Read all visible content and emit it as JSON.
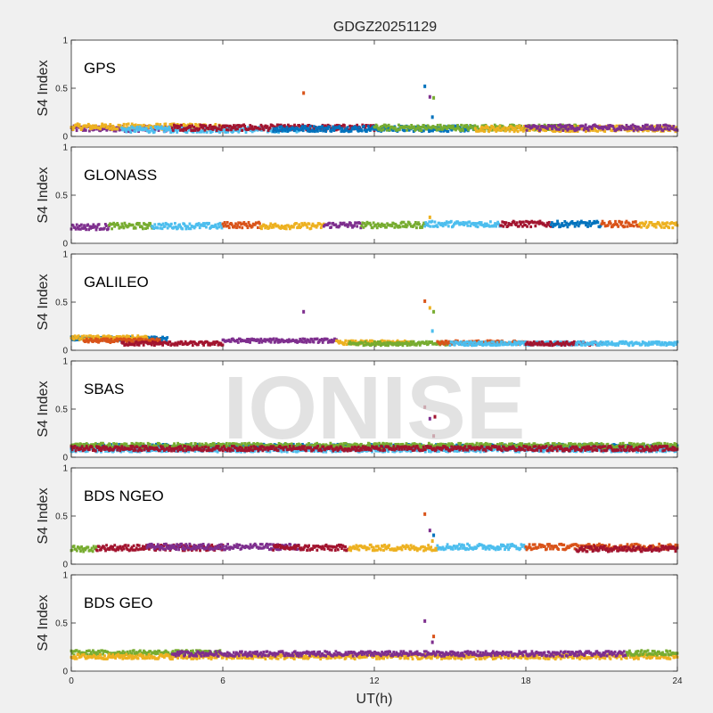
{
  "chart_data": {
    "type": "scatter",
    "title": "GDGZ20251129",
    "xlabel": "UT(h)",
    "ylabel": "S4 Index",
    "xlim": [
      0,
      24
    ],
    "ylim": [
      0,
      1
    ],
    "xticks": [
      0,
      6,
      12,
      18,
      24
    ],
    "yticks": [
      0,
      0.5,
      1
    ],
    "ytick_labels": [
      "0",
      "0.5",
      "1"
    ],
    "grid": false,
    "watermark": "IONISE",
    "colors": {
      "blue": "#0072BD",
      "orange": "#D95319",
      "yellow": "#EDB120",
      "purple": "#7E2F8E",
      "green": "#77AC30",
      "cyan": "#4DBEEE",
      "crimson": "#A2142F"
    },
    "panels": [
      {
        "label": "GPS",
        "baseline": 0.08,
        "noise": 0.03,
        "segments": [
          {
            "start": 0,
            "end": 4,
            "color": "#7E2F8E",
            "level": 0.08
          },
          {
            "start": 0,
            "end": 6,
            "color": "#EDB120",
            "level": 0.1
          },
          {
            "start": 2,
            "end": 9,
            "color": "#4DBEEE",
            "level": 0.07
          },
          {
            "start": 4,
            "end": 12,
            "color": "#A2142F",
            "level": 0.09
          },
          {
            "start": 8,
            "end": 16,
            "color": "#0072BD",
            "level": 0.08
          },
          {
            "start": 12,
            "end": 20,
            "color": "#77AC30",
            "level": 0.09
          },
          {
            "start": 16,
            "end": 24,
            "color": "#EDB120",
            "level": 0.08
          },
          {
            "start": 18,
            "end": 24,
            "color": "#7E2F8E",
            "level": 0.09
          }
        ],
        "outliers": [
          {
            "x": 9.2,
            "y": 0.45,
            "color": "#D95319"
          },
          {
            "x": 14.0,
            "y": 0.52,
            "color": "#0072BD"
          },
          {
            "x": 14.2,
            "y": 0.41,
            "color": "#7E2F8E"
          },
          {
            "x": 14.35,
            "y": 0.4,
            "color": "#77AC30"
          },
          {
            "x": 14.3,
            "y": 0.2,
            "color": "#0072BD"
          }
        ]
      },
      {
        "label": "GLONASS",
        "baseline": 0.18,
        "noise": 0.03,
        "segments": [
          {
            "start": 0,
            "end": 1.5,
            "color": "#7E2F8E",
            "level": 0.17
          },
          {
            "start": 1.5,
            "end": 3.2,
            "color": "#77AC30",
            "level": 0.18
          },
          {
            "start": 3.2,
            "end": 6,
            "color": "#4DBEEE",
            "level": 0.18
          },
          {
            "start": 6,
            "end": 7.5,
            "color": "#D95319",
            "level": 0.19
          },
          {
            "start": 7.5,
            "end": 10,
            "color": "#EDB120",
            "level": 0.18
          },
          {
            "start": 10,
            "end": 11.5,
            "color": "#7E2F8E",
            "level": 0.19
          },
          {
            "start": 11.5,
            "end": 14,
            "color": "#77AC30",
            "level": 0.19
          },
          {
            "start": 14,
            "end": 17,
            "color": "#4DBEEE",
            "level": 0.2
          },
          {
            "start": 17,
            "end": 19,
            "color": "#A2142F",
            "level": 0.2
          },
          {
            "start": 19,
            "end": 21,
            "color": "#0072BD",
            "level": 0.2
          },
          {
            "start": 21,
            "end": 22.5,
            "color": "#D95319",
            "level": 0.2
          },
          {
            "start": 22.5,
            "end": 24,
            "color": "#EDB120",
            "level": 0.19
          }
        ],
        "outliers": [
          {
            "x": 14.2,
            "y": 0.27,
            "color": "#EDB120"
          }
        ]
      },
      {
        "label": "GALILEO",
        "baseline": 0.08,
        "noise": 0.02,
        "segments": [
          {
            "start": 0,
            "end": 3.8,
            "color": "#0072BD",
            "level": 0.12
          },
          {
            "start": 0,
            "end": 3.0,
            "color": "#EDB120",
            "level": 0.13
          },
          {
            "start": 0.5,
            "end": 3.5,
            "color": "#D95319",
            "level": 0.1
          },
          {
            "start": 2,
            "end": 6,
            "color": "#A2142F",
            "level": 0.07
          },
          {
            "start": 6,
            "end": 10.5,
            "color": "#7E2F8E",
            "level": 0.1
          },
          {
            "start": 10.5,
            "end": 13.5,
            "color": "#EDB120",
            "level": 0.08
          },
          {
            "start": 11,
            "end": 15,
            "color": "#77AC30",
            "level": 0.07
          },
          {
            "start": 14.5,
            "end": 18,
            "color": "#D95319",
            "level": 0.08
          },
          {
            "start": 15,
            "end": 20,
            "color": "#4DBEEE",
            "level": 0.07
          },
          {
            "start": 18,
            "end": 21,
            "color": "#A2142F",
            "level": 0.07
          },
          {
            "start": 20,
            "end": 24,
            "color": "#4DBEEE",
            "level": 0.07
          }
        ],
        "outliers": [
          {
            "x": 9.2,
            "y": 0.4,
            "color": "#7E2F8E"
          },
          {
            "x": 14.0,
            "y": 0.51,
            "color": "#D95319"
          },
          {
            "x": 14.2,
            "y": 0.44,
            "color": "#EDB120"
          },
          {
            "x": 14.35,
            "y": 0.4,
            "color": "#77AC30"
          },
          {
            "x": 14.3,
            "y": 0.2,
            "color": "#4DBEEE"
          }
        ]
      },
      {
        "label": "SBAS",
        "baseline": 0.1,
        "noise": 0.025,
        "segments": [
          {
            "start": 0,
            "end": 24,
            "color": "#0072BD",
            "level": 0.11
          },
          {
            "start": 0,
            "end": 24,
            "color": "#4DBEEE",
            "level": 0.08
          },
          {
            "start": 0,
            "end": 24,
            "color": "#77AC30",
            "level": 0.12
          },
          {
            "start": 0,
            "end": 24,
            "color": "#A2142F",
            "level": 0.09
          }
        ],
        "outliers": [
          {
            "x": 14.0,
            "y": 0.52,
            "color": "#A2142F"
          },
          {
            "x": 14.2,
            "y": 0.4,
            "color": "#7E2F8E"
          },
          {
            "x": 14.4,
            "y": 0.42,
            "color": "#A2142F"
          },
          {
            "x": 14.35,
            "y": 0.22,
            "color": "#A2142F"
          }
        ]
      },
      {
        "label": "BDS NGEO",
        "baseline": 0.17,
        "noise": 0.03,
        "segments": [
          {
            "start": 0,
            "end": 1,
            "color": "#77AC30",
            "level": 0.16
          },
          {
            "start": 1,
            "end": 6,
            "color": "#A2142F",
            "level": 0.17
          },
          {
            "start": 3,
            "end": 9,
            "color": "#7E2F8E",
            "level": 0.18
          },
          {
            "start": 8,
            "end": 11,
            "color": "#A2142F",
            "level": 0.17
          },
          {
            "start": 11,
            "end": 14.5,
            "color": "#EDB120",
            "level": 0.17
          },
          {
            "start": 14.5,
            "end": 18,
            "color": "#4DBEEE",
            "level": 0.18
          },
          {
            "start": 18,
            "end": 24,
            "color": "#D95319",
            "level": 0.18
          },
          {
            "start": 20,
            "end": 24,
            "color": "#A2142F",
            "level": 0.16
          }
        ],
        "outliers": [
          {
            "x": 14.0,
            "y": 0.52,
            "color": "#D95319"
          },
          {
            "x": 14.2,
            "y": 0.35,
            "color": "#7E2F8E"
          },
          {
            "x": 14.35,
            "y": 0.3,
            "color": "#0072BD"
          },
          {
            "x": 14.3,
            "y": 0.24,
            "color": "#EDB120"
          }
        ]
      },
      {
        "label": "BDS GEO",
        "baseline": 0.17,
        "noise": 0.025,
        "segments": [
          {
            "start": 0,
            "end": 6,
            "color": "#77AC30",
            "level": 0.19
          },
          {
            "start": 0,
            "end": 24,
            "color": "#EDB120",
            "level": 0.15
          },
          {
            "start": 4,
            "end": 22,
            "color": "#7E2F8E",
            "level": 0.18
          },
          {
            "start": 22,
            "end": 24,
            "color": "#77AC30",
            "level": 0.19
          }
        ],
        "outliers": [
          {
            "x": 14.0,
            "y": 0.52,
            "color": "#7E2F8E"
          },
          {
            "x": 14.35,
            "y": 0.36,
            "color": "#D95319"
          },
          {
            "x": 14.3,
            "y": 0.3,
            "color": "#7E2F8E"
          }
        ]
      }
    ]
  }
}
